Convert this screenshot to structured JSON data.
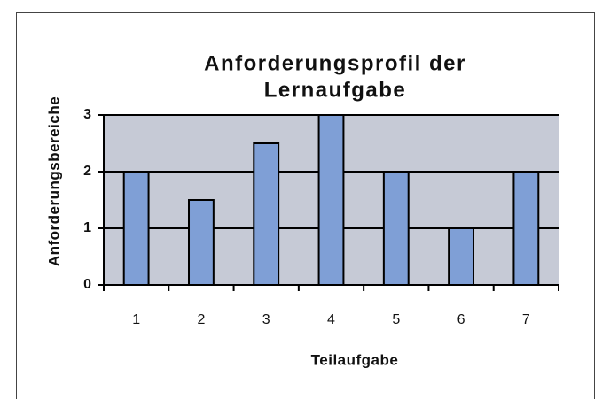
{
  "chart_data": {
    "type": "bar",
    "title": [
      "Anforderungsprofil der",
      "Lernaufgabe"
    ],
    "x_label": "Teilaufgabe",
    "y_label": "Anforderungsbereiche",
    "categories": [
      "1",
      "2",
      "3",
      "4",
      "5",
      "6",
      "7"
    ],
    "values": [
      2,
      1.5,
      2.5,
      3,
      2,
      1,
      2
    ],
    "color": "#7f9fd6",
    "plot_background": "#c6cad6",
    "ylim": [
      0,
      3
    ],
    "yticks": [
      0,
      1,
      2,
      3
    ],
    "grid": true
  }
}
